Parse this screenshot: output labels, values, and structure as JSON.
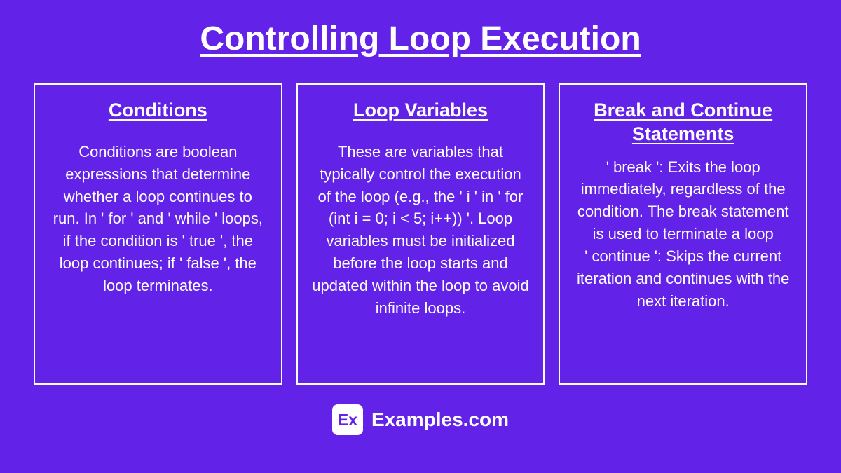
{
  "background_color": "#6322e8",
  "text_color": "#ffffff",
  "title": "Controlling Loop Execution",
  "title_fontsize": 48,
  "cards": [
    {
      "title": "Conditions",
      "body": "Conditions are boolean expressions that determine whether a loop continues to run. In ' for ' and ' while ' loops, if the condition is ' true ', the loop continues; if ' false ', the loop terminates."
    },
    {
      "title": "Loop Variables",
      "body": "These are variables that typically control the execution of the loop (e.g., the ' i ' in ' for (int i = 0; i < 5; i++)) '. Loop variables must be initialized before the loop starts and updated within the loop to avoid infinite loops."
    },
    {
      "title": "Break and Continue Statements",
      "body": "' break ': Exits the loop immediately, regardless of the condition. The break statement is used to terminate a loop\n' continue ': Skips the current iteration and continues with the next iteration."
    }
  ],
  "card_border_color": "#ffffff",
  "card_title_fontsize": 27,
  "card_body_fontsize": 22,
  "footer": {
    "logo_text": "Ex",
    "site_text": "Examples.com",
    "logo_bg": "#ffffff",
    "logo_fg": "#6322e8"
  }
}
